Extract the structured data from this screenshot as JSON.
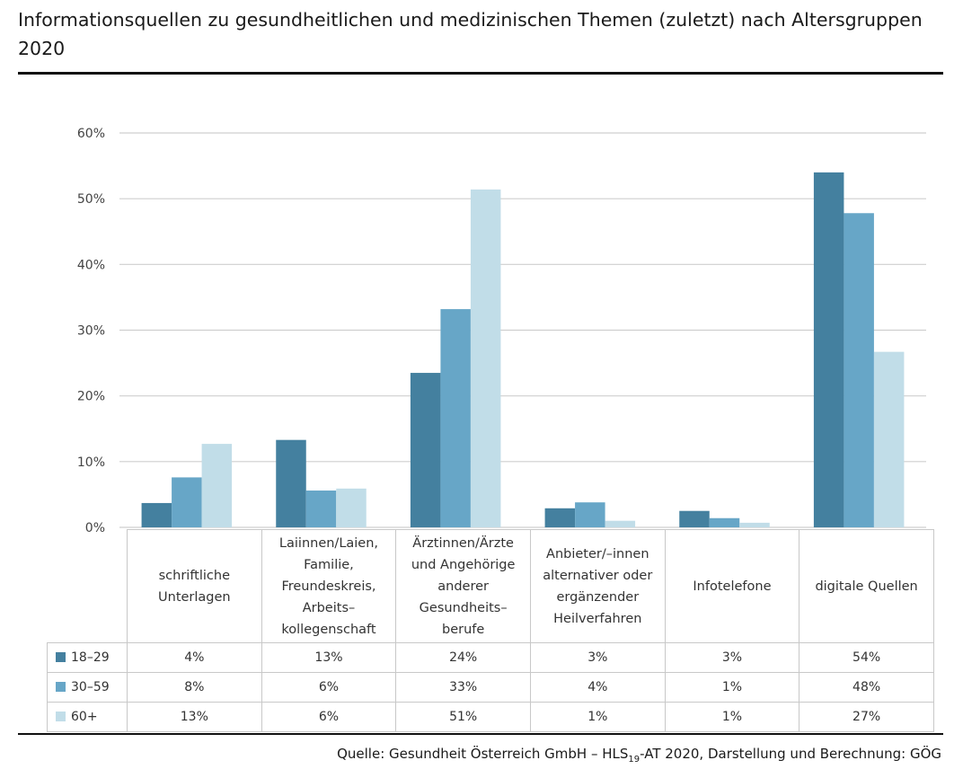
{
  "title": "Informationsquellen zu gesundheitlichen und medizinischen Themen (zuletzt) nach Altersgruppen 2020",
  "source": {
    "prefix": "Quelle: Gesundheit Österreich GmbH – HLS",
    "sub": "19",
    "suffix": "-AT 2020, Darstellung und Berechnung: GÖG"
  },
  "chart_data": {
    "type": "bar",
    "title": "Informationsquellen zu gesundheitlichen und medizinischen Themen (zuletzt) nach Altersgruppen 2020",
    "ylim": [
      0,
      60
    ],
    "yticks": [
      "0%",
      "10%",
      "20%",
      "30%",
      "40%",
      "50%",
      "60%"
    ],
    "grid": true,
    "legend": "table-left",
    "categories": [
      "schriftliche Unterlagen",
      "Laiinnen/Laien, Familie, Freundeskreis, Arbeits–kollegenschaft",
      "Ärztinnen/Ärzte und Angehörige anderer Gesundheits–berufe",
      "Anbieter/–innen alternativer oder ergänzender Heilverfahren",
      "Infotelefone",
      "digitale Quellen"
    ],
    "category_lines": [
      [
        "schriftliche",
        "Unterlagen"
      ],
      [
        "Laiinnen/Laien,",
        "Familie,",
        "Freundeskreis,",
        "Arbeits–",
        "kollegenschaft"
      ],
      [
        "Ärztinnen/Ärzte",
        "und Angehörige",
        "anderer",
        "Gesundheits–",
        "berufe"
      ],
      [
        "Anbieter/–innen",
        "alternativer oder",
        "ergänzender",
        "Heilverfahren"
      ],
      [
        "Infotelefone"
      ],
      [
        "digitale Quellen"
      ]
    ],
    "series": [
      {
        "name": "18–29",
        "color": "#44809f",
        "values": [
          3.7,
          13.3,
          23.5,
          2.9,
          2.5,
          54.0
        ],
        "labels": [
          "4%",
          "13%",
          "24%",
          "3%",
          "3%",
          "54%"
        ]
      },
      {
        "name": "30–59",
        "color": "#67a6c7",
        "values": [
          7.6,
          5.6,
          33.2,
          3.8,
          1.4,
          47.8
        ],
        "labels": [
          "8%",
          "6%",
          "33%",
          "4%",
          "1%",
          "48%"
        ]
      },
      {
        "name": "60+",
        "color": "#c1dde8",
        "values": [
          12.7,
          5.9,
          51.4,
          1.0,
          0.7,
          26.7
        ],
        "labels": [
          "13%",
          "6%",
          "51%",
          "1%",
          "1%",
          "27%"
        ]
      }
    ]
  }
}
